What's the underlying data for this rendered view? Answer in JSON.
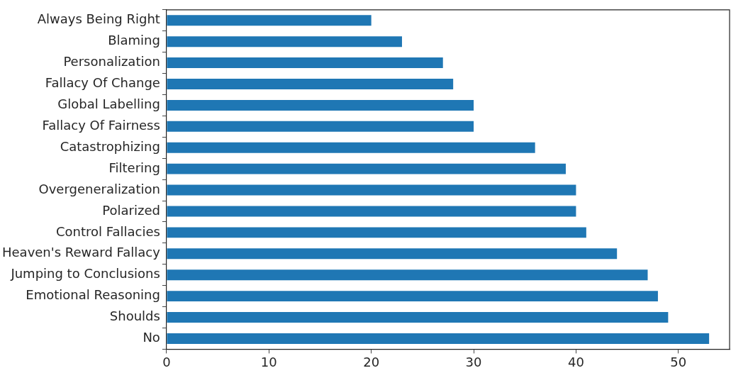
{
  "chart_data": {
    "type": "bar",
    "orientation": "horizontal",
    "categories": [
      "Always Being Right",
      "Blaming",
      "Personalization",
      "Fallacy Of Change",
      "Global Labelling",
      "Fallacy Of Fairness",
      "Catastrophizing",
      "Filtering",
      "Overgeneralization",
      "Polarized",
      "Control Fallacies",
      "Heaven's Reward Fallacy",
      "Jumping to Conclusions",
      "Emotional Reasoning",
      "Shoulds",
      "No"
    ],
    "values": [
      20,
      23,
      27,
      28,
      30,
      30,
      36,
      39,
      40,
      40,
      41,
      44,
      47,
      48,
      49,
      53
    ],
    "color": "#1f77b4",
    "xlim": [
      0,
      55
    ],
    "xticks": [
      0,
      10,
      20,
      30,
      40,
      50
    ],
    "grid": false,
    "legend": false
  }
}
